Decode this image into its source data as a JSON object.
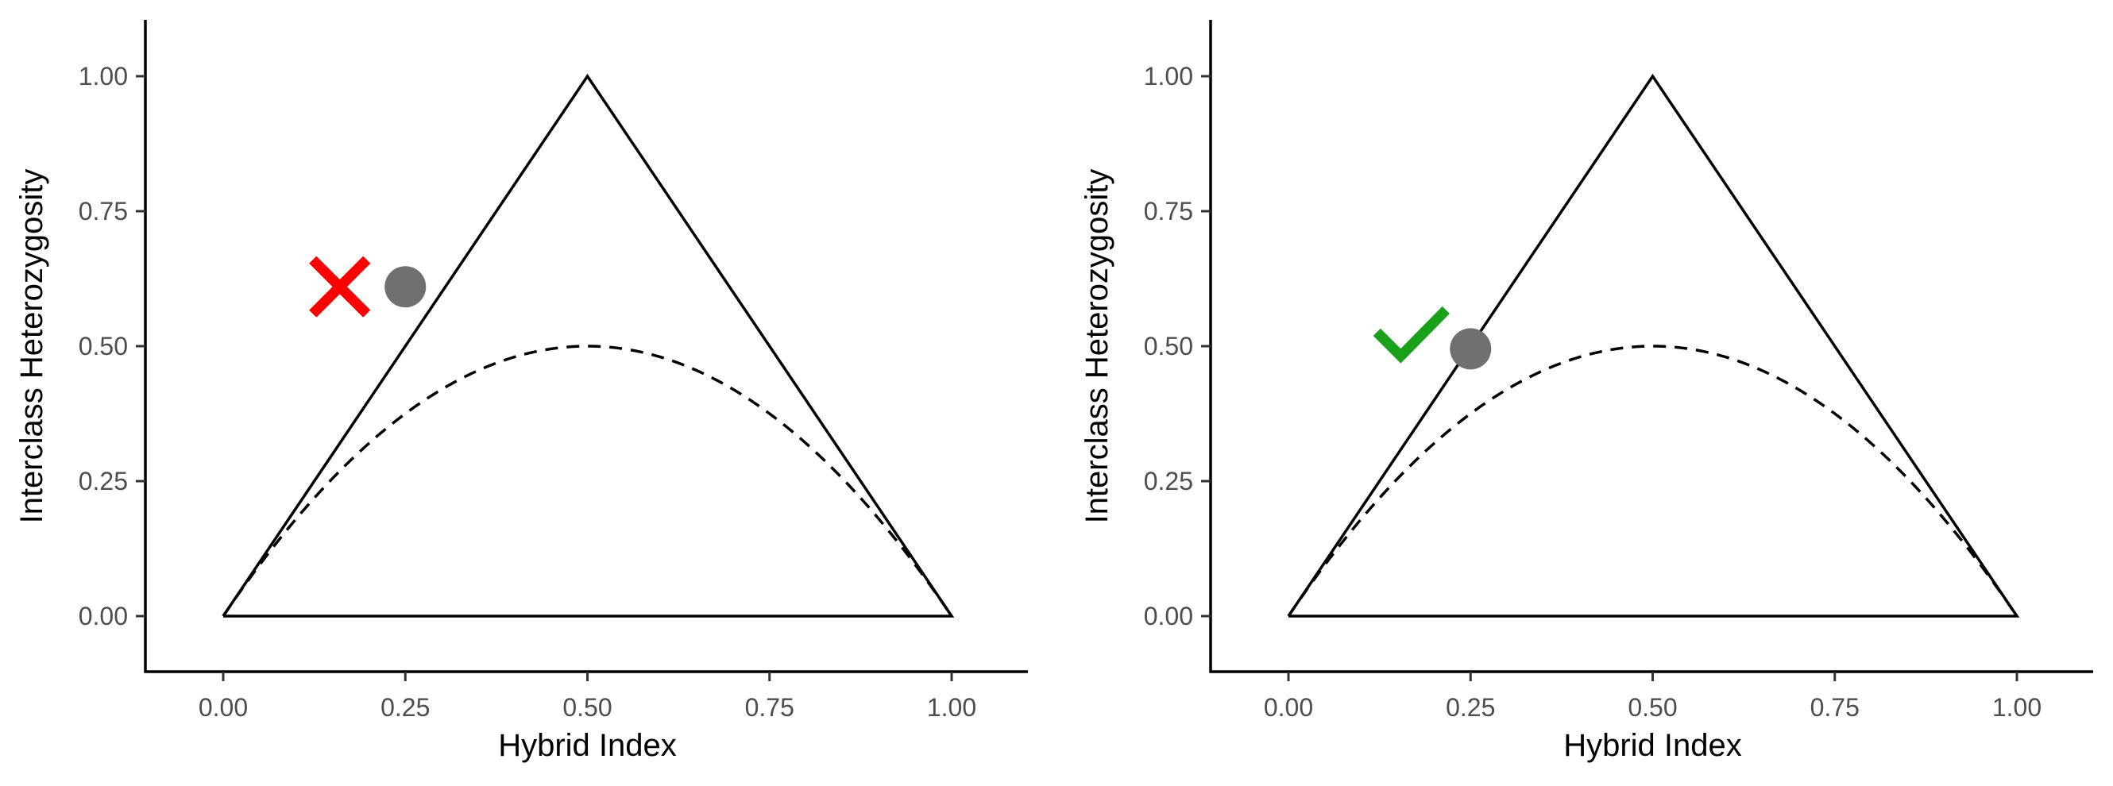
{
  "chart_data": [
    {
      "type": "scatter",
      "title": "",
      "xlabel": "Hybrid Index",
      "ylabel": "Interclass Heterozygosity",
      "xlim": [
        -0.1,
        1.1
      ],
      "ylim": [
        -0.1,
        1.1
      ],
      "xticks": [
        "0.00",
        "0.25",
        "0.50",
        "0.75",
        "1.00"
      ],
      "yticks": [
        "0.00",
        "0.25",
        "0.50",
        "0.75",
        "1.00"
      ],
      "grid": false,
      "triangle": [
        [
          0,
          0
        ],
        [
          0.5,
          1
        ],
        [
          1,
          0
        ],
        [
          0,
          0
        ]
      ],
      "dashed_curve": "2 * x * (1 - x)",
      "points": [
        {
          "x": 0.25,
          "y": 0.61,
          "color": "#707070"
        }
      ],
      "annotation": {
        "icon": "cross-icon",
        "color": "#ff0000",
        "x": 0.16,
        "y": 0.61
      }
    },
    {
      "type": "scatter",
      "title": "",
      "xlabel": "Hybrid Index",
      "ylabel": "Interclass Heterozygosity",
      "xlim": [
        -0.1,
        1.1
      ],
      "ylim": [
        -0.1,
        1.1
      ],
      "xticks": [
        "0.00",
        "0.25",
        "0.50",
        "0.75",
        "1.00"
      ],
      "yticks": [
        "0.00",
        "0.25",
        "0.50",
        "0.75",
        "1.00"
      ],
      "grid": false,
      "triangle": [
        [
          0,
          0
        ],
        [
          0.5,
          1
        ],
        [
          1,
          0
        ],
        [
          0,
          0
        ]
      ],
      "dashed_curve": "2 * x * (1 - x)",
      "points": [
        {
          "x": 0.25,
          "y": 0.495,
          "color": "#707070"
        }
      ],
      "annotation": {
        "icon": "check-icon",
        "color": "#1aa01a",
        "x": 0.165,
        "y": 0.52
      }
    }
  ]
}
